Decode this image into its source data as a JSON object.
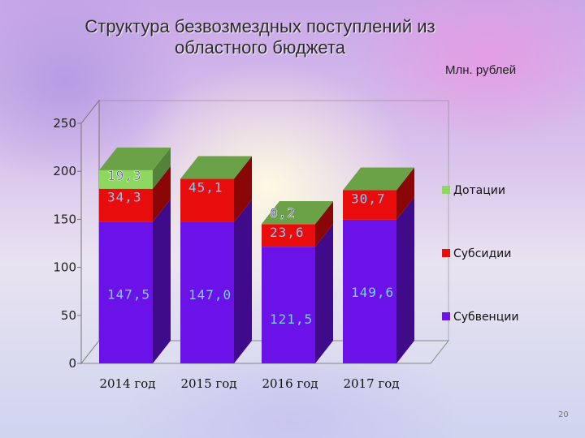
{
  "slide": {
    "title_line1": "Структура безвозмездных поступлений из",
    "title_line2": "областного бюджета",
    "unit": "Млн. рублей",
    "page_number": "20"
  },
  "chart_data": {
    "type": "bar",
    "stacked": true,
    "categories": [
      "2014 год",
      "2015 год",
      "2016 год",
      "2017 год"
    ],
    "series": [
      {
        "name": "Субвенции",
        "color": "#6a12e8",
        "values": [
          147.5,
          147.0,
          121.5,
          149.6
        ],
        "labels": [
          "147,5",
          "147,0",
          "121,5",
          "149,6"
        ]
      },
      {
        "name": "Субсидии",
        "color": "#e80c0c",
        "values": [
          34.3,
          45.1,
          23.6,
          30.7
        ],
        "labels": [
          "34,3",
          "45,1",
          "23,6",
          "30,7"
        ]
      },
      {
        "name": "Дотации",
        "color": "#8ed860",
        "values": [
          19.3,
          0,
          0.2,
          0
        ],
        "labels": [
          "19,3",
          "",
          "0,2",
          ""
        ]
      }
    ],
    "yticks": [
      0,
      50,
      100,
      150,
      200,
      250
    ],
    "ylim": [
      0,
      250
    ],
    "legend_position": "right",
    "grid": false
  }
}
